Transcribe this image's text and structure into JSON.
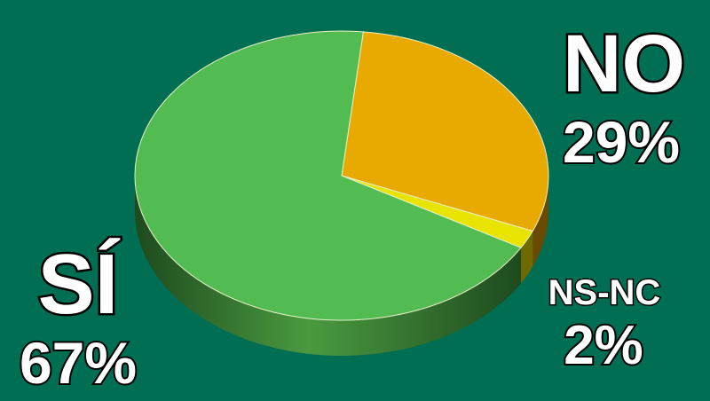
{
  "chart_data": {
    "type": "pie",
    "style": "3d",
    "start_angle_deg": 6,
    "slices": [
      {
        "label": "NO",
        "value": 29,
        "value_label": "29%",
        "color": "#e8aa00",
        "side_color": "#6a4a00"
      },
      {
        "label": "NS-NC",
        "value": 2,
        "value_label": "2%",
        "color": "#e8e400",
        "side_color": "#6e6a00"
      },
      {
        "label": "SÍ",
        "value": 67,
        "value_label": "67%",
        "color": "#52bb52",
        "side_color": "#2e6a2e"
      }
    ],
    "background": "#006e52"
  }
}
